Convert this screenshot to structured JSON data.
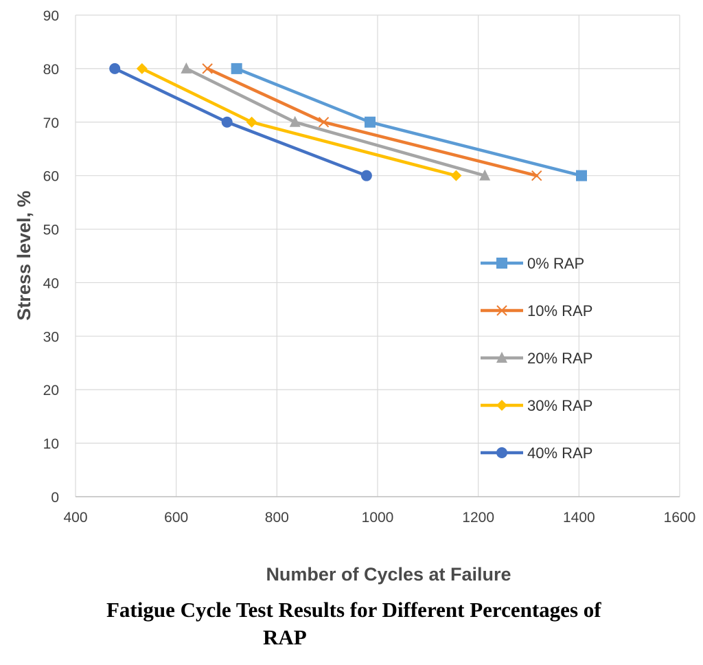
{
  "chart_data": {
    "type": "line",
    "title": "",
    "xlabel": "Number of Cycles at Failure",
    "ylabel": "Stress level, %",
    "xlim": [
      400,
      1600
    ],
    "ylim": [
      0,
      90
    ],
    "xticks": [
      400,
      600,
      800,
      1000,
      1200,
      1400,
      1600
    ],
    "yticks": [
      0,
      10,
      20,
      30,
      40,
      50,
      60,
      70,
      80,
      90
    ],
    "grid": true,
    "legend_position": "right",
    "series": [
      {
        "name": "0% RAP",
        "color": "#5B9BD5",
        "marker": "square",
        "points": [
          {
            "x": 720,
            "y": 80
          },
          {
            "x": 985,
            "y": 70
          },
          {
            "x": 1405,
            "y": 60
          }
        ]
      },
      {
        "name": "10% RAP",
        "color": "#ED7D31",
        "marker": "x",
        "points": [
          {
            "x": 662,
            "y": 80
          },
          {
            "x": 893,
            "y": 70
          },
          {
            "x": 1316,
            "y": 60
          }
        ]
      },
      {
        "name": "20% RAP",
        "color": "#A5A5A5",
        "marker": "triangle",
        "points": [
          {
            "x": 620,
            "y": 80
          },
          {
            "x": 836,
            "y": 70
          },
          {
            "x": 1213,
            "y": 60
          }
        ]
      },
      {
        "name": "30% RAP",
        "color": "#FFC000",
        "marker": "diamond",
        "points": [
          {
            "x": 532,
            "y": 80
          },
          {
            "x": 750,
            "y": 70
          },
          {
            "x": 1156,
            "y": 60
          }
        ]
      },
      {
        "name": "40% RAP",
        "color": "#4472C4",
        "marker": "circle",
        "points": [
          {
            "x": 478,
            "y": 80
          },
          {
            "x": 701,
            "y": 70
          },
          {
            "x": 978,
            "y": 60
          }
        ]
      }
    ]
  },
  "caption": {
    "line1": "Fatigue Cycle Test Results for Different Percentages of",
    "line2": "RAP"
  }
}
